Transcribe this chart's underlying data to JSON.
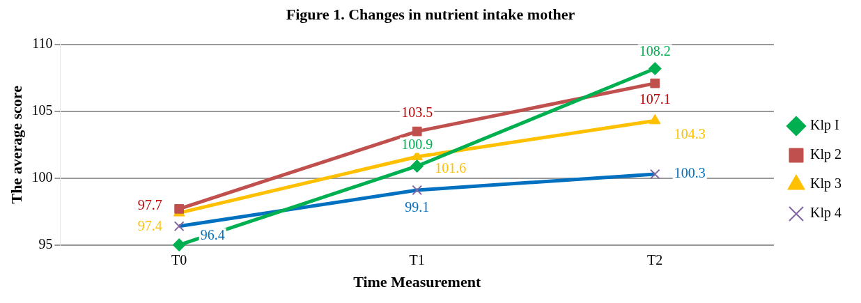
{
  "chart_data": {
    "type": "line",
    "title": "Figure 1. Changes in nutrient intake mother",
    "xlabel": "Time Measurement",
    "ylabel": "The average score",
    "categories": [
      "T0",
      "T1",
      "T2"
    ],
    "series": [
      {
        "name": "Klp I",
        "color": "#00b050",
        "marker": "diamond",
        "values": [
          95,
          100.9,
          108.2
        ],
        "value_labels": [
          null,
          "100.9",
          "108.2"
        ]
      },
      {
        "name": "Klp 2",
        "color": "#c0504d",
        "marker": "square",
        "values": [
          97.7,
          103.5,
          107.1
        ],
        "value_labels": [
          "97.7",
          "103.5",
          "107.1"
        ]
      },
      {
        "name": "Klp 3",
        "color": "#ffc000",
        "marker": "triangle",
        "values": [
          97.4,
          101.6,
          104.3
        ],
        "value_labels": [
          "97.4",
          "101.6",
          "104.3"
        ]
      },
      {
        "name": "Klp 4",
        "color": "#0070c0",
        "marker": "cross",
        "values": [
          96.4,
          99.1,
          100.3
        ],
        "value_labels": [
          "96.4",
          "99.1",
          "100.3"
        ]
      }
    ],
    "ylim": [
      95,
      110
    ],
    "yticks": [
      95,
      100,
      105,
      110
    ],
    "grid": "y",
    "legend": "right"
  }
}
